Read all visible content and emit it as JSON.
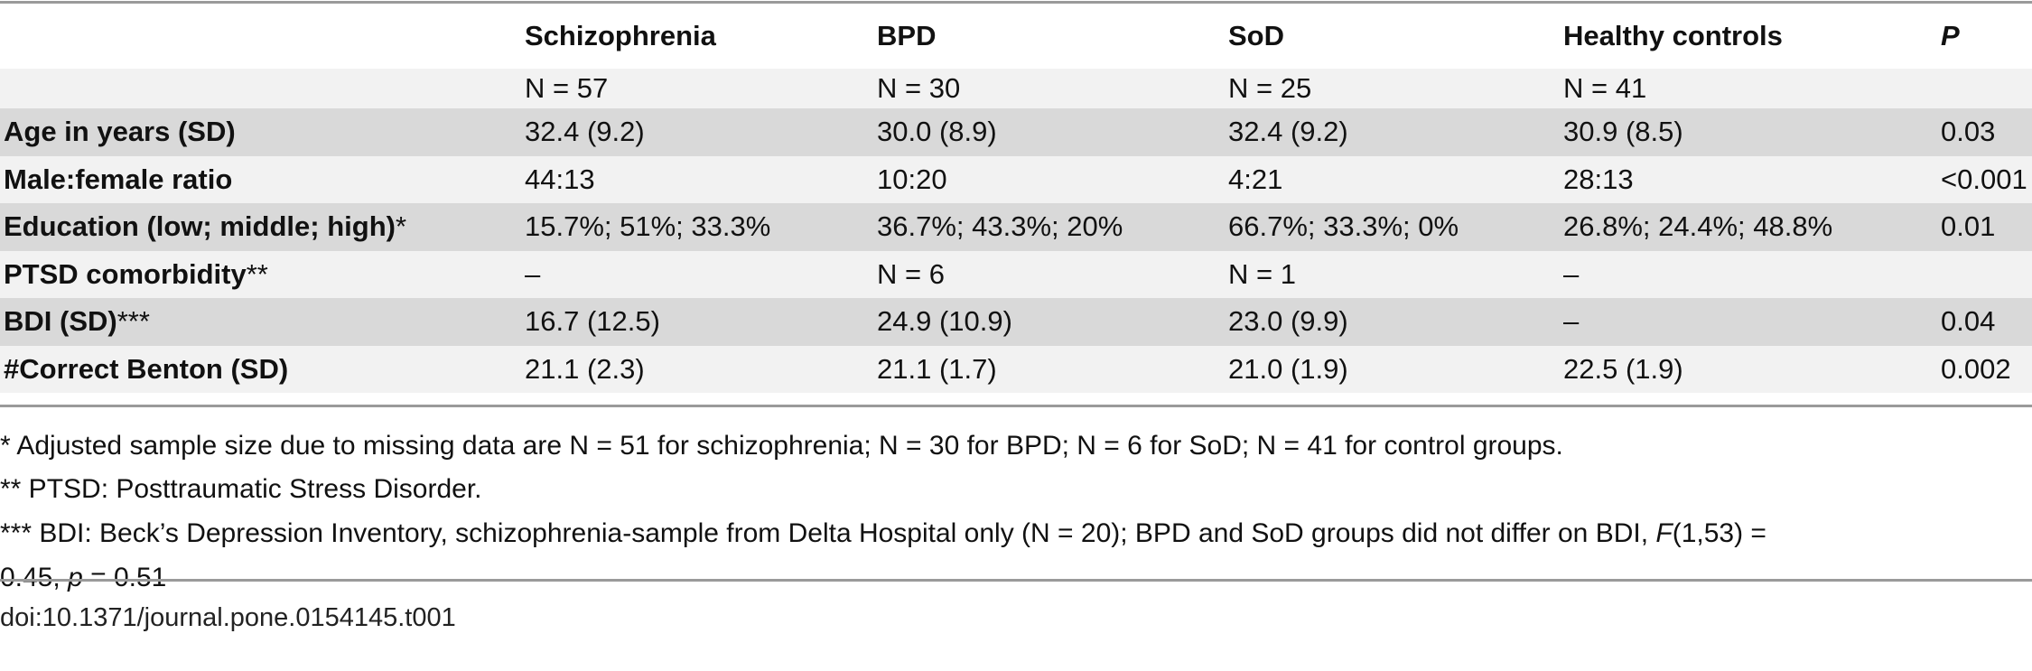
{
  "columns": {
    "c1": "Schizophrenia",
    "c2": "BPD",
    "c3": "SoD",
    "c4": "Healthy controls",
    "p": "P"
  },
  "n_row": [
    "N = 57",
    "N = 30",
    "N = 25",
    "N = 41"
  ],
  "rows": [
    {
      "label": "Age in years (SD)",
      "mark": "",
      "cells": [
        "32.4 (9.2)",
        "30.0 (8.9)",
        "32.4 (9.2)",
        "30.9 (8.5)",
        "0.03"
      ]
    },
    {
      "label": "Male:female ratio",
      "mark": "",
      "cells": [
        "44:13",
        "10:20",
        "4:21",
        "28:13",
        "<0.001"
      ]
    },
    {
      "label": "Education (low; middle; high)",
      "mark": "*",
      "cells": [
        "15.7%; 51%; 33.3%",
        "36.7%; 43.3%; 20%",
        "66.7%; 33.3%; 0%",
        "26.8%; 24.4%; 48.8%",
        "0.01"
      ]
    },
    {
      "label": "PTSD comorbidity",
      "mark": "**",
      "cells": [
        "–",
        "N = 6",
        "N = 1",
        "–",
        ""
      ]
    },
    {
      "label": "BDI (SD)",
      "mark": "***",
      "cells": [
        "16.7 (12.5)",
        "24.9 (10.9)",
        "23.0 (9.9)",
        "–",
        "0.04"
      ]
    },
    {
      "label": "#Correct Benton (SD)",
      "mark": "",
      "cells": [
        "21.1 (2.3)",
        "21.1 (1.7)",
        "21.0 (1.9)",
        "22.5 (1.9)",
        "0.002"
      ]
    }
  ],
  "footnotes": {
    "note1": "* Adjusted sample size due to missing data are N = 51 for schizophrenia; N = 30 for BPD; N = 6 for SoD; N = 41 for control groups.",
    "note2": "** PTSD: Posttraumatic Stress Disorder.",
    "note3_line1_prefix": "*** BDI: Beck’s Depression Inventory, schizophrenia-sample from Delta Hospital only (N = 20); BPD and SoD groups did not differ on BDI, ",
    "note3_F": "F",
    "note3_line1_suffix": "(1,53) =",
    "note3_line2_prefix": "0.45, ",
    "note3_p": "p",
    "note3_line2_suffix": " = 0.51"
  },
  "doi": "doi:10.1371/journal.pone.0154145.t001"
}
